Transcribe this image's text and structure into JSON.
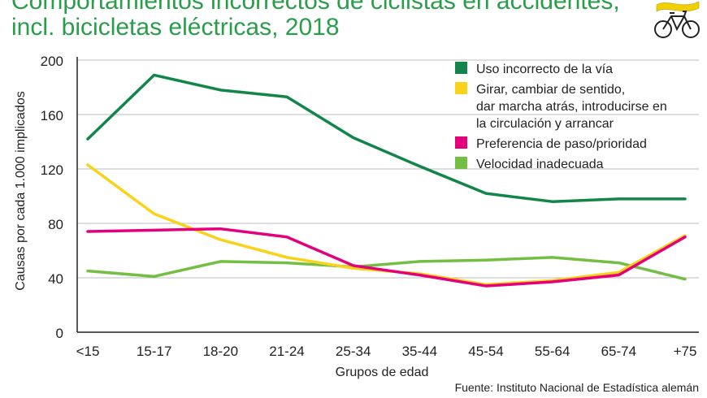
{
  "chart_data": {
    "type": "line",
    "title_line1": "Comportamientos incorrectos de ciclistas en accidentes,",
    "title_line2": "incl. bicicletas eléctricas, 2018",
    "xlabel": "Grupos de edad",
    "ylabel": "Causas por cada 1.000 implicados",
    "ylim": [
      0,
      200
    ],
    "yticks": [
      "0",
      "40",
      "80",
      "120",
      "160",
      "200"
    ],
    "categories": [
      "<15",
      "15-17",
      "18-20",
      "21-24",
      "25-34",
      "35-44",
      "45-54",
      "55-64",
      "65-74",
      "+75"
    ],
    "series": [
      {
        "name": "Uso incorrecto de la vía",
        "color": "#12864a",
        "values": [
          142,
          189,
          178,
          173,
          143,
          122,
          102,
          96,
          98,
          98
        ]
      },
      {
        "name": "Girar, cambiar de sentido,|dar marcha atrás, introducirse en|la circulación y arrancar",
        "color": "#f9d21a",
        "values": [
          123,
          87,
          68,
          55,
          47,
          43,
          35,
          38,
          44,
          71
        ]
      },
      {
        "name": "Preferencia de paso/prioridad",
        "color": "#e4007c",
        "values": [
          74,
          75,
          76,
          70,
          49,
          42,
          34,
          37,
          42,
          70
        ]
      },
      {
        "name": "Velocidad inadecuada",
        "color": "#72bf44",
        "values": [
          45,
          41,
          52,
          51,
          48,
          52,
          53,
          55,
          51,
          39
        ]
      }
    ],
    "source": "Fuente: Instituto Nacional de Estadística alemán",
    "grid": true,
    "legend_position": "top-right"
  },
  "colors": {
    "title": "#2a9d4a",
    "grid": "#bdbdbd",
    "axis": "#222222"
  },
  "icons": [
    "flag-icon",
    "bicycle-icon"
  ]
}
